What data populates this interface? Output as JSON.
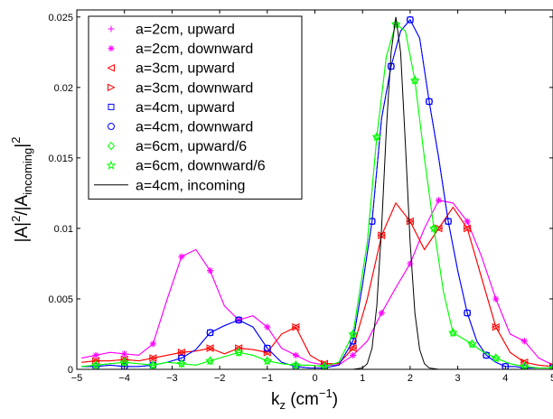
{
  "chart_data": {
    "type": "line",
    "xlabel_base": "k",
    "xlabel_sub": "z",
    "xlabel_unit_open": " (cm",
    "xlabel_unit_sup": "−1",
    "xlabel_unit_close": ")",
    "ylabel_parts": {
      "a": "|A|",
      "b": "2",
      "c": "/|A",
      "d": "incoming",
      "e": "|",
      "f": "2"
    },
    "xlim": [
      -5,
      5
    ],
    "ylim": [
      0,
      0.0255
    ],
    "xticks": [
      -5,
      -4,
      -3,
      -2,
      -1,
      0,
      1,
      2,
      3,
      4,
      5
    ],
    "yticks": [
      0,
      0.005,
      0.01,
      0.015,
      0.02,
      0.025
    ],
    "xtick_labels": [
      "−5",
      "−4",
      "−3",
      "−2",
      "−1",
      "0",
      "1",
      "2",
      "3",
      "4",
      "5"
    ],
    "ytick_labels": [
      "0",
      "0.005",
      "0.01",
      "0.015",
      "0.02",
      "0.025"
    ],
    "grid": false,
    "legend_position": "top-left",
    "series": [
      {
        "name": "a=2cm, upward",
        "color": "#ff00ff",
        "marker": "plus",
        "x": [
          -4.9,
          -4.6,
          -4.3,
          -4.0,
          -3.7,
          -3.4,
          -3.1,
          -2.8,
          -2.5,
          -2.2,
          -1.9,
          -1.6,
          -1.3,
          -1.0,
          -0.7,
          -0.4,
          -0.1,
          0.2,
          0.5,
          0.8,
          1.1,
          1.4,
          1.7,
          2.0,
          2.3,
          2.6,
          2.9,
          3.2,
          3.5,
          3.8,
          4.1,
          4.4,
          4.7,
          5.0
        ],
        "y": [
          0.0008,
          0.001,
          0.0012,
          0.0011,
          0.001,
          0.0018,
          0.005,
          0.008,
          0.0085,
          0.007,
          0.0045,
          0.0035,
          0.0038,
          0.003,
          0.0015,
          0.001,
          0.0005,
          0.0003,
          0.0003,
          0.001,
          0.002,
          0.004,
          0.0058,
          0.0075,
          0.01,
          0.012,
          0.0118,
          0.0105,
          0.008,
          0.005,
          0.0025,
          0.002,
          0.0008,
          0.0003
        ]
      },
      {
        "name": "a=2cm, downward",
        "color": "#ff00ff",
        "marker": "asterisk",
        "x": [
          -4.9,
          -4.6,
          -4.3,
          -4.0,
          -3.7,
          -3.4,
          -3.1,
          -2.8,
          -2.5,
          -2.2,
          -1.9,
          -1.6,
          -1.3,
          -1.0,
          -0.7,
          -0.4,
          -0.1,
          0.2,
          0.5,
          0.8,
          1.1,
          1.4,
          1.7,
          2.0,
          2.3,
          2.6,
          2.9,
          3.2,
          3.5,
          3.8,
          4.1,
          4.4,
          4.7,
          5.0
        ],
        "y": [
          0.0008,
          0.001,
          0.0012,
          0.0011,
          0.001,
          0.0018,
          0.005,
          0.008,
          0.0085,
          0.007,
          0.0045,
          0.0035,
          0.0038,
          0.003,
          0.0015,
          0.001,
          0.0005,
          0.0003,
          0.0003,
          0.001,
          0.002,
          0.004,
          0.0058,
          0.0075,
          0.01,
          0.012,
          0.0118,
          0.0105,
          0.008,
          0.005,
          0.0025,
          0.002,
          0.0008,
          0.0003
        ]
      },
      {
        "name": "a=3cm, upward",
        "color": "#ff0000",
        "marker": "triangle-left",
        "x": [
          -4.9,
          -4.6,
          -4.3,
          -4.0,
          -3.7,
          -3.4,
          -3.1,
          -2.8,
          -2.5,
          -2.2,
          -1.9,
          -1.6,
          -1.3,
          -1.0,
          -0.7,
          -0.4,
          -0.1,
          0.2,
          0.5,
          0.8,
          1.1,
          1.4,
          1.7,
          2.0,
          2.3,
          2.6,
          2.9,
          3.2,
          3.5,
          3.8,
          4.1,
          4.4,
          4.7,
          5.0
        ],
        "y": [
          0.0005,
          0.0006,
          0.0006,
          0.0007,
          0.0006,
          0.0008,
          0.001,
          0.0012,
          0.0013,
          0.0015,
          0.0011,
          0.0015,
          0.0014,
          0.0012,
          0.0025,
          0.003,
          0.001,
          0.0004,
          0.0004,
          0.0015,
          0.005,
          0.0095,
          0.0118,
          0.0105,
          0.0085,
          0.01,
          0.0115,
          0.01,
          0.0065,
          0.003,
          0.0012,
          0.0005,
          0.0003,
          0.0002
        ]
      },
      {
        "name": "a=3cm, downward",
        "color": "#ff0000",
        "marker": "triangle-right",
        "x": [
          -4.9,
          -4.6,
          -4.3,
          -4.0,
          -3.7,
          -3.4,
          -3.1,
          -2.8,
          -2.5,
          -2.2,
          -1.9,
          -1.6,
          -1.3,
          -1.0,
          -0.7,
          -0.4,
          -0.1,
          0.2,
          0.5,
          0.8,
          1.1,
          1.4,
          1.7,
          2.0,
          2.3,
          2.6,
          2.9,
          3.2,
          3.5,
          3.8,
          4.1,
          4.4,
          4.7,
          5.0
        ],
        "y": [
          0.0005,
          0.0006,
          0.0006,
          0.0007,
          0.0006,
          0.0008,
          0.001,
          0.0012,
          0.0013,
          0.0015,
          0.0011,
          0.0015,
          0.0014,
          0.0012,
          0.0025,
          0.003,
          0.001,
          0.0004,
          0.0004,
          0.0015,
          0.005,
          0.0095,
          0.0118,
          0.0105,
          0.0085,
          0.01,
          0.0115,
          0.01,
          0.0065,
          0.003,
          0.0012,
          0.0005,
          0.0003,
          0.0002
        ]
      },
      {
        "name": "a=4cm, upward",
        "color": "#0000ff",
        "marker": "square",
        "x": [
          -4.9,
          -4.6,
          -4.3,
          -4.0,
          -3.7,
          -3.4,
          -3.1,
          -2.8,
          -2.5,
          -2.2,
          -1.9,
          -1.6,
          -1.3,
          -1.0,
          -0.7,
          -0.4,
          -0.1,
          0.2,
          0.5,
          0.8,
          1.0,
          1.2,
          1.4,
          1.6,
          1.8,
          2.0,
          2.2,
          2.4,
          2.6,
          2.8,
          3.0,
          3.2,
          3.4,
          3.6,
          3.8,
          4.0,
          4.2,
          4.4,
          4.7,
          5.0
        ],
        "y": [
          0.0002,
          0.0002,
          0.0003,
          0.0002,
          0.0002,
          0.0003,
          0.0005,
          0.0008,
          0.0014,
          0.0026,
          0.0031,
          0.0035,
          0.003,
          0.0015,
          0.0005,
          0.0002,
          0.0001,
          0.0001,
          0.0003,
          0.002,
          0.006,
          0.0105,
          0.0178,
          0.0215,
          0.024,
          0.0248,
          0.0235,
          0.019,
          0.015,
          0.0105,
          0.007,
          0.004,
          0.002,
          0.001,
          0.0005,
          0.0002,
          0.0002,
          0.0001,
          0.0001,
          0.0001
        ]
      },
      {
        "name": "a=4cm, downward",
        "color": "#0000ff",
        "marker": "circle",
        "x": [
          -4.9,
          -4.6,
          -4.3,
          -4.0,
          -3.7,
          -3.4,
          -3.1,
          -2.8,
          -2.5,
          -2.2,
          -1.9,
          -1.6,
          -1.3,
          -1.0,
          -0.7,
          -0.4,
          -0.1,
          0.2,
          0.5,
          0.8,
          1.0,
          1.2,
          1.4,
          1.6,
          1.8,
          2.0,
          2.2,
          2.4,
          2.6,
          2.8,
          3.0,
          3.2,
          3.4,
          3.6,
          3.8,
          4.0,
          4.2,
          4.4,
          4.7,
          5.0
        ],
        "y": [
          0.0002,
          0.0002,
          0.0003,
          0.0002,
          0.0002,
          0.0003,
          0.0005,
          0.0008,
          0.0014,
          0.0026,
          0.0031,
          0.0035,
          0.003,
          0.0015,
          0.0005,
          0.0002,
          0.0001,
          0.0001,
          0.0003,
          0.002,
          0.006,
          0.0105,
          0.0178,
          0.0215,
          0.024,
          0.0248,
          0.0235,
          0.019,
          0.015,
          0.0105,
          0.007,
          0.004,
          0.002,
          0.001,
          0.0005,
          0.0002,
          0.0002,
          0.0001,
          0.0001,
          0.0001
        ]
      },
      {
        "name": "a=6cm, upward/6",
        "color": "#00ff00",
        "marker": "diamond",
        "x": [
          -4.9,
          -4.6,
          -4.3,
          -4.0,
          -3.7,
          -3.4,
          -3.1,
          -2.8,
          -2.5,
          -2.2,
          -1.9,
          -1.6,
          -1.3,
          -1.0,
          -0.7,
          -0.4,
          -0.1,
          0.2,
          0.5,
          0.8,
          1.1,
          1.3,
          1.5,
          1.7,
          1.9,
          2.1,
          2.3,
          2.5,
          2.7,
          2.9,
          3.1,
          3.3,
          3.5,
          3.8,
          4.1,
          4.4,
          4.7,
          5.0
        ],
        "y": [
          0.0002,
          0.0003,
          0.0004,
          0.0005,
          0.0004,
          0.0003,
          0.0005,
          0.0004,
          0.0003,
          0.0006,
          0.0009,
          0.0012,
          0.001,
          0.0006,
          0.0004,
          0.0003,
          0.0003,
          0.0002,
          0.0005,
          0.0025,
          0.009,
          0.0165,
          0.0222,
          0.0245,
          0.024,
          0.0205,
          0.015,
          0.01,
          0.0055,
          0.0026,
          0.0022,
          0.0018,
          0.0013,
          0.0008,
          0.0004,
          0.0002,
          0.0001,
          0.0001
        ]
      },
      {
        "name": "a=6cm, downward/6",
        "color": "#00ff00",
        "marker": "star",
        "x": [
          -4.9,
          -4.6,
          -4.3,
          -4.0,
          -3.7,
          -3.4,
          -3.1,
          -2.8,
          -2.5,
          -2.2,
          -1.9,
          -1.6,
          -1.3,
          -1.0,
          -0.7,
          -0.4,
          -0.1,
          0.2,
          0.5,
          0.8,
          1.1,
          1.3,
          1.5,
          1.7,
          1.9,
          2.1,
          2.3,
          2.5,
          2.7,
          2.9,
          3.1,
          3.3,
          3.5,
          3.8,
          4.1,
          4.4,
          4.7,
          5.0
        ],
        "y": [
          0.0002,
          0.0003,
          0.0004,
          0.0005,
          0.0004,
          0.0003,
          0.0005,
          0.0004,
          0.0003,
          0.0006,
          0.0009,
          0.0012,
          0.001,
          0.0006,
          0.0004,
          0.0003,
          0.0003,
          0.0002,
          0.0005,
          0.0025,
          0.009,
          0.0165,
          0.0222,
          0.0245,
          0.024,
          0.0205,
          0.015,
          0.01,
          0.0055,
          0.0026,
          0.0022,
          0.0018,
          0.0013,
          0.0008,
          0.0004,
          0.0002,
          0.0001,
          0.0001
        ]
      },
      {
        "name": "a=4cm, incoming",
        "color": "#000000",
        "marker": "none",
        "x": [
          -5.0,
          0.8,
          1.0,
          1.1,
          1.2,
          1.3,
          1.4,
          1.5,
          1.6,
          1.7,
          1.8,
          1.9,
          2.0,
          2.1,
          2.2,
          2.3,
          2.4,
          2.6,
          5.0
        ],
        "y": [
          0.0,
          0.0,
          0.0001,
          0.0004,
          0.0015,
          0.0045,
          0.01,
          0.017,
          0.0225,
          0.025,
          0.0225,
          0.016,
          0.009,
          0.004,
          0.0014,
          0.0004,
          0.0001,
          0.0,
          0.0
        ]
      }
    ]
  }
}
